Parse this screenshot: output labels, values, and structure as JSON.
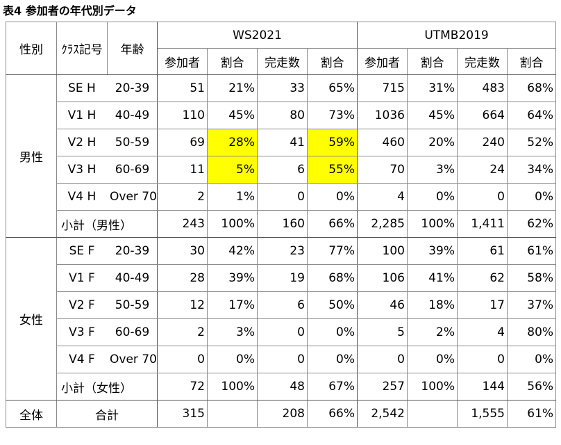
{
  "title": "表4 参加者の年代別データ",
  "headers": {
    "gender": "性別",
    "class": "ｸﾗｽ記号",
    "age": "年齢",
    "event1": "WS2021",
    "event2": "UTMB2019",
    "participants": "参加者",
    "ratio": "割合",
    "finishers": "完走数"
  },
  "groups": [
    {
      "gender": "男性",
      "rows": [
        {
          "cls": "SE H",
          "age": "20-39",
          "ws_p": "51",
          "ws_pr": "21%",
          "ws_f": "33",
          "ws_fr": "65%",
          "ut_p": "715",
          "ut_pr": "31%",
          "ut_f": "483",
          "ut_fr": "68%",
          "hl": false
        },
        {
          "cls": "V1 H",
          "age": "40-49",
          "ws_p": "110",
          "ws_pr": "45%",
          "ws_f": "80",
          "ws_fr": "73%",
          "ut_p": "1036",
          "ut_pr": "45%",
          "ut_f": "664",
          "ut_fr": "64%",
          "hl": false
        },
        {
          "cls": "V2 H",
          "age": "50-59",
          "ws_p": "69",
          "ws_pr": "28%",
          "ws_f": "41",
          "ws_fr": "59%",
          "ut_p": "460",
          "ut_pr": "20%",
          "ut_f": "240",
          "ut_fr": "52%",
          "hl": true
        },
        {
          "cls": "V3 H",
          "age": "60-69",
          "ws_p": "11",
          "ws_pr": "5%",
          "ws_f": "6",
          "ws_fr": "55%",
          "ut_p": "70",
          "ut_pr": "3%",
          "ut_f": "24",
          "ut_fr": "34%",
          "hl": true
        },
        {
          "cls": "V4 H",
          "age": "Over 70",
          "ws_p": "2",
          "ws_pr": "1%",
          "ws_f": "0",
          "ws_fr": "0%",
          "ut_p": "4",
          "ut_pr": "0%",
          "ut_f": "0",
          "ut_fr": "0%",
          "hl": false
        }
      ],
      "subtotal": {
        "label": "小計（男性）",
        "ws_p": "243",
        "ws_pr": "100%",
        "ws_f": "160",
        "ws_fr": "66%",
        "ut_p": "2,285",
        "ut_pr": "100%",
        "ut_f": "1,411",
        "ut_fr": "62%"
      }
    },
    {
      "gender": "女性",
      "rows": [
        {
          "cls": "SE F",
          "age": "20-39",
          "ws_p": "30",
          "ws_pr": "42%",
          "ws_f": "23",
          "ws_fr": "77%",
          "ut_p": "100",
          "ut_pr": "39%",
          "ut_f": "61",
          "ut_fr": "61%",
          "hl": false
        },
        {
          "cls": "V1 F",
          "age": "40-49",
          "ws_p": "28",
          "ws_pr": "39%",
          "ws_f": "19",
          "ws_fr": "68%",
          "ut_p": "106",
          "ut_pr": "41%",
          "ut_f": "62",
          "ut_fr": "58%",
          "hl": false
        },
        {
          "cls": "V2 F",
          "age": "50-59",
          "ws_p": "12",
          "ws_pr": "17%",
          "ws_f": "6",
          "ws_fr": "50%",
          "ut_p": "46",
          "ut_pr": "18%",
          "ut_f": "17",
          "ut_fr": "37%",
          "hl": false
        },
        {
          "cls": "V3 F",
          "age": "60-69",
          "ws_p": "2",
          "ws_pr": "3%",
          "ws_f": "0",
          "ws_fr": "0%",
          "ut_p": "5",
          "ut_pr": "2%",
          "ut_f": "4",
          "ut_fr": "80%",
          "hl": false
        },
        {
          "cls": "V4 F",
          "age": "Over 70",
          "ws_p": "0",
          "ws_pr": "0%",
          "ws_f": "0",
          "ws_fr": "0%",
          "ut_p": "0",
          "ut_pr": "0%",
          "ut_f": "0",
          "ut_fr": "0%",
          "hl": false
        }
      ],
      "subtotal": {
        "label": "小計（女性）",
        "ws_p": "72",
        "ws_pr": "100%",
        "ws_f": "48",
        "ws_fr": "67%",
        "ut_p": "257",
        "ut_pr": "100%",
        "ut_f": "144",
        "ut_fr": "56%"
      }
    }
  ],
  "total": {
    "gender": "全体",
    "label": "合計",
    "ws_p": "315",
    "ws_pr": "",
    "ws_f": "208",
    "ws_fr": "66%",
    "ut_p": "2,542",
    "ut_pr": "",
    "ut_f": "1,555",
    "ut_fr": "61%"
  },
  "highlight_color": "#ffff00"
}
